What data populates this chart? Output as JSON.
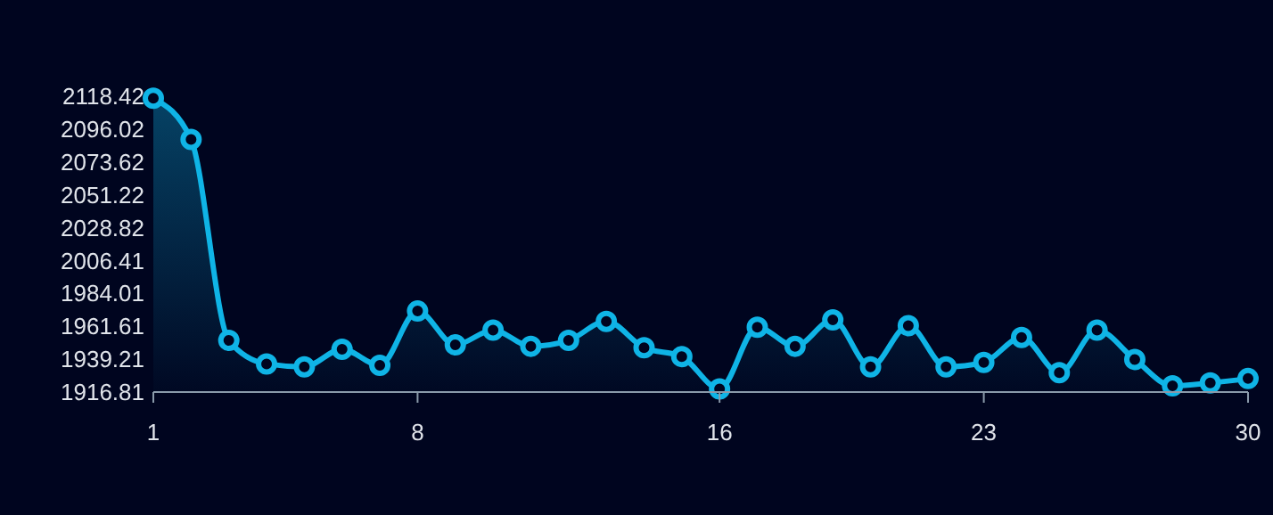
{
  "chart_data": {
    "type": "area",
    "x": [
      1,
      2,
      3,
      4,
      5,
      6,
      7,
      8,
      9,
      10,
      11,
      12,
      13,
      14,
      15,
      16,
      17,
      18,
      19,
      20,
      21,
      22,
      23,
      24,
      25,
      26,
      27,
      28,
      29,
      30
    ],
    "values": [
      2117,
      2089,
      1952,
      1936,
      1934,
      1946,
      1935,
      1972,
      1949,
      1959,
      1948,
      1952,
      1965,
      1947,
      1941,
      1919,
      1961,
      1948,
      1966,
      1934,
      1962,
      1934,
      1937,
      1954,
      1930,
      1959,
      1939,
      1921,
      1923,
      1926
    ],
    "color": "#0fb4e6",
    "xlim": [
      1,
      30
    ],
    "xticks": [
      1,
      8,
      16,
      23,
      30
    ],
    "ylim": [
      1916.81,
      2118.42
    ],
    "yticks": [
      1916.81,
      1939.21,
      1961.61,
      1984.01,
      2006.41,
      2028.82,
      2051.22,
      2073.62,
      2096.02,
      2118.42
    ],
    "marker": "circle",
    "grid": false
  }
}
